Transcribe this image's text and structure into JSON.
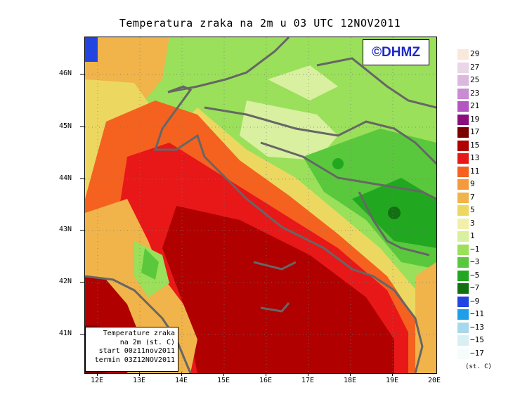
{
  "title": "Temperatura zraka na 2m u 03 UTC 12NOV2011",
  "logo": "©DHMZ",
  "info_box": [
    "Temperature zraka",
    "na 2m (st. C)",
    "start 00z11nov2011",
    "termin 03Z12NOV2011"
  ],
  "lat_labels": [
    "46N",
    "45N",
    "44N",
    "43N",
    "42N",
    "41N"
  ],
  "lon_labels": [
    "12E",
    "13E",
    "14E",
    "15E",
    "16E",
    "17E",
    "18E",
    "19E",
    "20E"
  ],
  "colorbar": {
    "labels": [
      "29",
      "27",
      "25",
      "23",
      "21",
      "19",
      "17",
      "15",
      "13",
      "11",
      "9",
      "7",
      "5",
      "3",
      "1",
      "−1",
      "−3",
      "−5",
      "−7",
      "−9",
      "−11",
      "−13",
      "−15",
      "−17"
    ],
    "colors": [
      "#fbe8dc",
      "#ead6e6",
      "#dcb8e0",
      "#c98cd2",
      "#b455c2",
      "#8a0f7a",
      "#7a0000",
      "#b00000",
      "#e81818",
      "#f56220",
      "#f29a3c",
      "#f0b44a",
      "#ecd860",
      "#f2f0a8",
      "#d8f0a0",
      "#9ae05a",
      "#5ac83c",
      "#22a820",
      "#127012",
      "#2244e0",
      "#1e9ee8",
      "#a8d8ec",
      "#d8f0f4",
      "#f4fcfc"
    ],
    "units": "(st. C)"
  }
}
